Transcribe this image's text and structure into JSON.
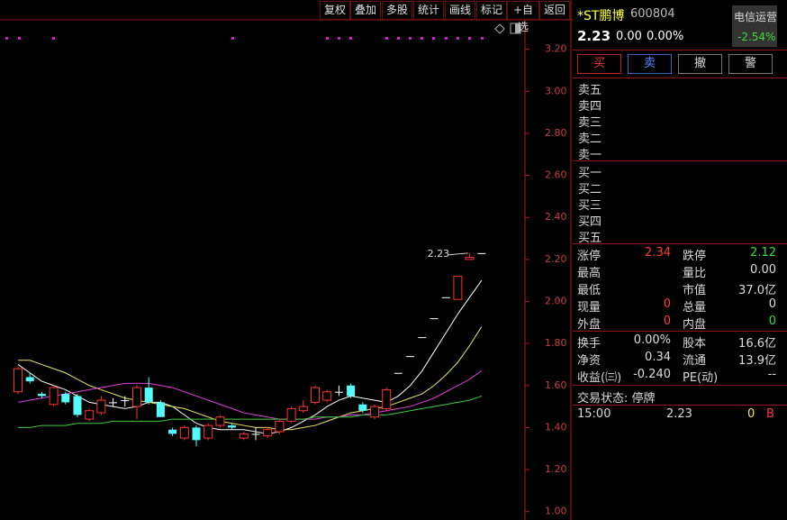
{
  "toolbar": [
    "复权",
    "叠加",
    "多股",
    "统计",
    "画线",
    "标记",
    "+自选",
    "返回"
  ],
  "stock": {
    "name": "*ST鹏博",
    "code": "600804",
    "price": "2.23",
    "change": "0.00",
    "change_pct": "0.00%",
    "sector": "电信运营",
    "sector_change": "-2.54%"
  },
  "trade_buttons": [
    "买",
    "卖",
    "撤",
    "警"
  ],
  "order_book": {
    "sell": [
      "卖五",
      "卖四",
      "卖三",
      "卖二",
      "卖一"
    ],
    "buy": [
      "买一",
      "买二",
      "买三",
      "买四",
      "买五"
    ]
  },
  "stats": [
    [
      {
        "label": "涨停",
        "value": "2.34",
        "color": "#ff3b3b"
      },
      {
        "label": "跌停",
        "value": "2.12",
        "color": "#3bdc3b"
      }
    ],
    [
      {
        "label": "最高",
        "value": ""
      },
      {
        "label": "量比",
        "value": "0.00"
      }
    ],
    [
      {
        "label": "最低",
        "value": ""
      },
      {
        "label": "市值",
        "value": "37.0亿"
      }
    ],
    [
      {
        "label": "现量",
        "value": "0",
        "color": "#ff3b3b"
      },
      {
        "label": "总量",
        "value": "0"
      }
    ],
    [
      {
        "label": "外盘",
        "value": "0",
        "color": "#ff3b3b"
      },
      {
        "label": "内盘",
        "value": "0",
        "color": "#3bdc3b"
      }
    ],
    [
      {
        "label": "换手",
        "value": "0.00%"
      },
      {
        "label": "股本",
        "value": "16.6亿"
      }
    ],
    [
      {
        "label": "净资",
        "value": "0.34"
      },
      {
        "label": "流通",
        "value": "13.9亿"
      }
    ],
    [
      {
        "label": "收益(㈢)",
        "value": "-0.240"
      },
      {
        "label": "PE(动)",
        "value": "--"
      }
    ]
  ],
  "status": "交易状态: 停牌",
  "ticks": [
    {
      "time": "15:00",
      "price": "2.23",
      "volume": "0",
      "side": "B"
    }
  ],
  "chart": {
    "type": "candlestick",
    "ylim": [
      0.96,
      3.34
    ],
    "yticks": [
      {
        "value": 1.0,
        "label": "1.00"
      },
      {
        "value": 1.2,
        "label": "1.20"
      },
      {
        "value": 1.4,
        "label": "1.40"
      },
      {
        "value": 1.6,
        "label": "1.60"
      },
      {
        "value": 1.8,
        "label": "1.80"
      },
      {
        "value": 2.0,
        "label": "2.00"
      },
      {
        "value": 2.2,
        "label": "2.20"
      },
      {
        "value": 2.4,
        "label": "2.40"
      },
      {
        "value": 2.6,
        "label": "2.60"
      },
      {
        "value": 2.8,
        "label": "2.80"
      },
      {
        "value": 3.0,
        "label": "3.00"
      },
      {
        "value": 3.2,
        "label": "3.20"
      }
    ],
    "annotation": 2.23,
    "up_color": "#ff3232",
    "down_color": "#54fcfc",
    "flat_color": "#ffffff",
    "candles": [
      {
        "open": 1.57,
        "high": 1.69,
        "low": 1.56,
        "close": 1.68
      },
      {
        "open": 1.64,
        "high": 1.66,
        "low": 1.61,
        "close": 1.62
      },
      {
        "open": 1.56,
        "high": 1.57,
        "low": 1.54,
        "close": 1.55
      },
      {
        "open": 1.51,
        "high": 1.6,
        "low": 1.5,
        "close": 1.59
      },
      {
        "open": 1.56,
        "high": 1.57,
        "low": 1.51,
        "close": 1.52
      },
      {
        "open": 1.55,
        "high": 1.56,
        "low": 1.45,
        "close": 1.46
      },
      {
        "open": 1.44,
        "high": 1.49,
        "low": 1.43,
        "close": 1.48
      },
      {
        "open": 1.47,
        "high": 1.55,
        "low": 1.46,
        "close": 1.53
      },
      {
        "open": 1.52,
        "high": 1.54,
        "low": 1.5,
        "close": 1.52
      },
      {
        "open": 1.53,
        "high": 1.55,
        "low": 1.5,
        "close": 1.53
      },
      {
        "open": 1.5,
        "high": 1.6,
        "low": 1.44,
        "close": 1.59
      },
      {
        "open": 1.59,
        "high": 1.64,
        "low": 1.51,
        "close": 1.52
      },
      {
        "open": 1.52,
        "high": 1.53,
        "low": 1.45,
        "close": 1.45
      },
      {
        "open": 1.39,
        "high": 1.4,
        "low": 1.36,
        "close": 1.37
      },
      {
        "open": 1.35,
        "high": 1.41,
        "low": 1.34,
        "close": 1.4
      },
      {
        "open": 1.4,
        "high": 1.41,
        "low": 1.31,
        "close": 1.34
      },
      {
        "open": 1.35,
        "high": 1.42,
        "low": 1.34,
        "close": 1.41
      },
      {
        "open": 1.41,
        "high": 1.46,
        "low": 1.4,
        "close": 1.45
      },
      {
        "open": 1.41,
        "high": 1.42,
        "low": 1.39,
        "close": 1.4
      },
      {
        "open": 1.35,
        "high": 1.38,
        "low": 1.34,
        "close": 1.37
      },
      {
        "open": 1.37,
        "high": 1.4,
        "low": 1.34,
        "close": 1.37
      },
      {
        "open": 1.36,
        "high": 1.4,
        "low": 1.35,
        "close": 1.39
      },
      {
        "open": 1.38,
        "high": 1.44,
        "low": 1.37,
        "close": 1.43
      },
      {
        "open": 1.43,
        "high": 1.5,
        "low": 1.42,
        "close": 1.49
      },
      {
        "open": 1.48,
        "high": 1.53,
        "low": 1.47,
        "close": 1.5
      },
      {
        "open": 1.52,
        "high": 1.6,
        "low": 1.51,
        "close": 1.59
      },
      {
        "open": 1.53,
        "high": 1.58,
        "low": 1.52,
        "close": 1.57
      },
      {
        "open": 1.57,
        "high": 1.6,
        "low": 1.55,
        "close": 1.57
      },
      {
        "open": 1.6,
        "high": 1.61,
        "low": 1.54,
        "close": 1.55
      },
      {
        "open": 1.51,
        "high": 1.52,
        "low": 1.47,
        "close": 1.48
      },
      {
        "open": 1.45,
        "high": 1.51,
        "low": 1.44,
        "close": 1.5
      },
      {
        "open": 1.49,
        "high": 1.59,
        "low": 1.48,
        "close": 1.58
      },
      {
        "open": 1.66,
        "high": 1.66,
        "low": 1.66,
        "close": 1.66
      },
      {
        "open": 1.74,
        "high": 1.74,
        "low": 1.74,
        "close": 1.74
      },
      {
        "open": 1.83,
        "high": 1.83,
        "low": 1.83,
        "close": 1.83
      },
      {
        "open": 1.92,
        "high": 1.92,
        "low": 1.92,
        "close": 1.92
      },
      {
        "open": 2.02,
        "high": 2.02,
        "low": 2.02,
        "close": 2.02
      },
      {
        "open": 2.01,
        "high": 2.12,
        "low": 2.01,
        "close": 2.12
      },
      {
        "open": 2.2,
        "high": 2.23,
        "low": 2.2,
        "close": 2.21
      },
      {
        "open": 2.23,
        "high": 2.23,
        "low": 2.23,
        "close": 2.23
      }
    ],
    "series": [
      {
        "color": "#ffffff",
        "values": [
          1.7,
          1.66,
          1.62,
          1.6,
          1.58,
          1.55,
          1.52,
          1.51,
          1.5,
          1.49,
          1.5,
          1.52,
          1.52,
          1.5,
          1.46,
          1.42,
          1.4,
          1.39,
          1.39,
          1.39,
          1.38,
          1.37,
          1.38,
          1.4,
          1.43,
          1.46,
          1.5,
          1.53,
          1.55,
          1.54,
          1.53,
          1.52,
          1.55,
          1.6,
          1.67,
          1.76,
          1.85,
          1.94,
          2.02,
          2.1
        ]
      },
      {
        "color": "#e8e85a",
        "values": [
          1.72,
          1.72,
          1.7,
          1.68,
          1.66,
          1.63,
          1.6,
          1.58,
          1.56,
          1.54,
          1.53,
          1.52,
          1.51,
          1.5,
          1.49,
          1.47,
          1.45,
          1.43,
          1.42,
          1.41,
          1.4,
          1.4,
          1.39,
          1.39,
          1.4,
          1.41,
          1.43,
          1.45,
          1.47,
          1.48,
          1.49,
          1.5,
          1.52,
          1.54,
          1.56,
          1.6,
          1.65,
          1.71,
          1.79,
          1.88
        ]
      },
      {
        "color": "#e040e0",
        "values": [
          1.52,
          1.53,
          1.54,
          1.55,
          1.56,
          1.57,
          1.58,
          1.59,
          1.6,
          1.61,
          1.61,
          1.61,
          1.6,
          1.59,
          1.57,
          1.55,
          1.53,
          1.51,
          1.49,
          1.47,
          1.46,
          1.45,
          1.44,
          1.44,
          1.44,
          1.44,
          1.45,
          1.45,
          1.46,
          1.46,
          1.47,
          1.48,
          1.49,
          1.5,
          1.52,
          1.54,
          1.57,
          1.6,
          1.63,
          1.67
        ]
      },
      {
        "color": "#3ccc3c",
        "values": [
          1.4,
          1.4,
          1.41,
          1.41,
          1.41,
          1.42,
          1.42,
          1.42,
          1.43,
          1.43,
          1.43,
          1.43,
          1.43,
          1.44,
          1.44,
          1.44,
          1.44,
          1.44,
          1.44,
          1.44,
          1.44,
          1.44,
          1.44,
          1.44,
          1.44,
          1.45,
          1.45,
          1.45,
          1.45,
          1.46,
          1.46,
          1.46,
          1.47,
          1.48,
          1.49,
          1.5,
          1.51,
          1.52,
          1.53,
          1.55
        ]
      }
    ]
  }
}
